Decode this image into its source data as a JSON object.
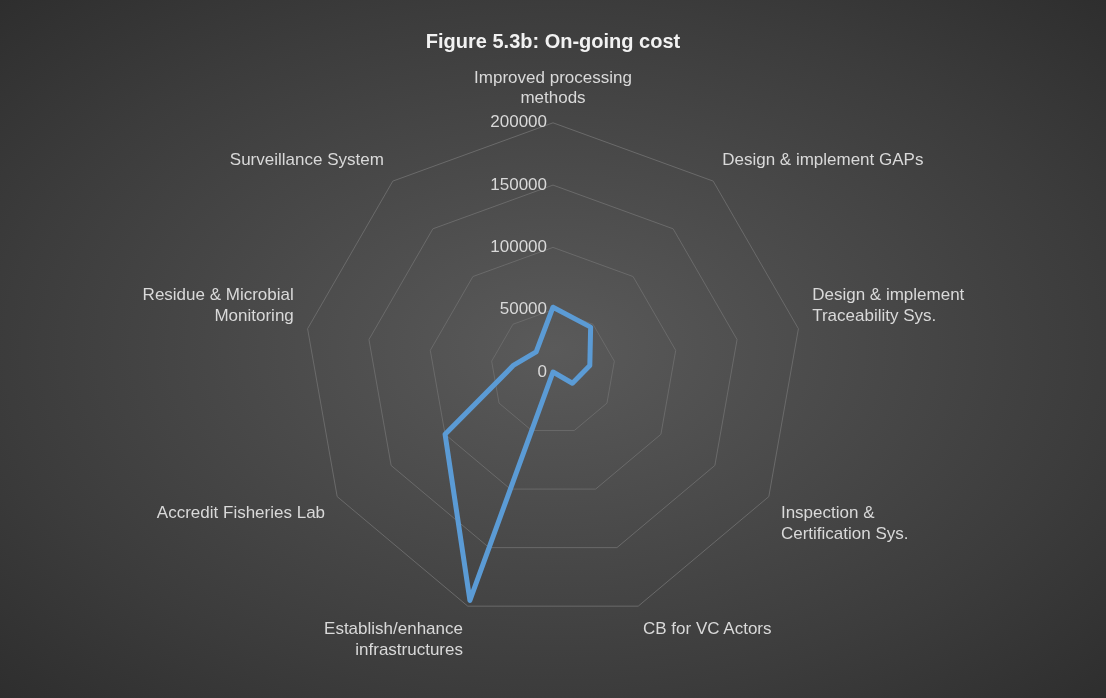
{
  "chart_data": {
    "type": "radar",
    "title": "Figure 5.3b: On-going cost",
    "categories": [
      "Improved processing methods",
      "Design & implement GAPs",
      "Design & implement Traceability Sys.",
      "Inspection & Certification Sys.",
      "CB for VC Actors",
      "Establish/enhance infrastructures",
      "Accredit Fisheries Lab",
      "Residue & Microbial Monitoring",
      "Surveillance System"
    ],
    "series": [
      {
        "color": "#5b9bd5",
        "values": [
          52000,
          47000,
          30000,
          18000,
          0,
          195000,
          100000,
          32000,
          21000
        ]
      }
    ],
    "ylim": [
      0,
      200000
    ],
    "yticks": [
      0,
      50000,
      100000,
      150000,
      200000
    ],
    "grid": true,
    "legend": false,
    "marker": "none"
  }
}
